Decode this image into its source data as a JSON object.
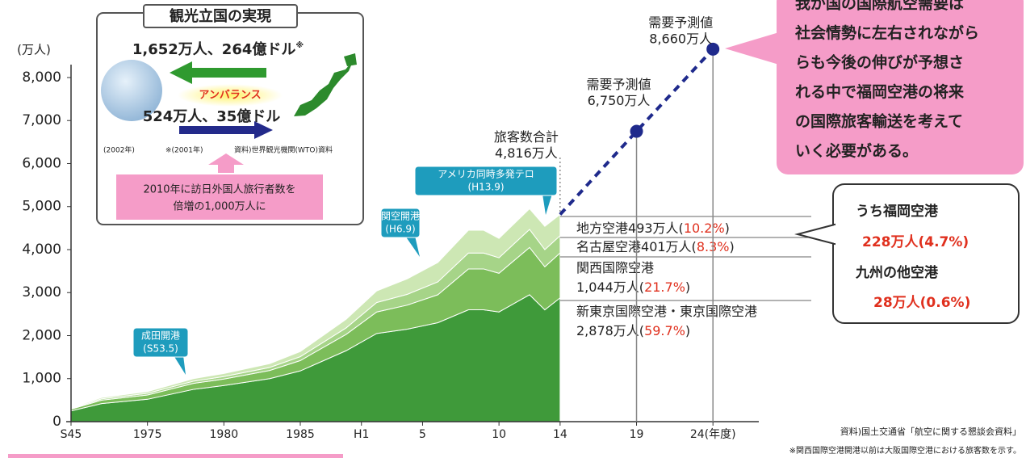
{
  "chart_data": {
    "type": "area",
    "stacked": true,
    "ylabel": "(万人)",
    "x": [
      1970,
      1972,
      1975,
      1978,
      1980,
      1983,
      1985,
      1988,
      1990,
      1992,
      1994,
      1996,
      1997,
      1998,
      2000,
      2001,
      2002
    ],
    "series": [
      {
        "name": "新東京国際空港・東京国際空港",
        "color": "#3f9a3a",
        "label": [
          "2,878万人(",
          "59.7%",
          ")"
        ],
        "values": [
          250,
          420,
          520,
          750,
          840,
          1000,
          1180,
          1650,
          2050,
          2150,
          2300,
          2600,
          2600,
          2550,
          2950,
          2600,
          2878
        ]
      },
      {
        "name": "関西国際空港",
        "color": "#7cbd5a",
        "label": [
          "1,044万人(",
          "21.7%",
          ")"
        ],
        "values": [
          40,
          80,
          100,
          140,
          150,
          190,
          240,
          380,
          500,
          560,
          650,
          950,
          950,
          900,
          1100,
          1000,
          1044
        ]
      },
      {
        "name": "名古屋空港",
        "color": "#a6d488",
        "label": [
          "401万人(",
          "8.3%",
          ")"
        ],
        "values": [
          15,
          30,
          40,
          50,
          60,
          70,
          90,
          150,
          220,
          250,
          300,
          370,
          370,
          360,
          420,
          400,
          401
        ]
      },
      {
        "name": "地方空港",
        "color": "#cde7b4",
        "label": [
          "493万人(",
          "10.2%",
          ")"
        ],
        "values": [
          15,
          30,
          40,
          60,
          70,
          90,
          120,
          200,
          270,
          360,
          450,
          530,
          530,
          450,
          480,
          540,
          493
        ]
      }
    ],
    "forecast": {
      "color": "#1f2a8c",
      "x": [
        2002,
        2007,
        2012
      ],
      "values": [
        4816,
        6750,
        8660
      ],
      "labels": [
        [
          "旅客数合計",
          "4,816万人"
        ],
        [
          "需要予測値",
          "6,750万人"
        ],
        [
          "需要予測値",
          "8,660万人"
        ]
      ]
    },
    "annotations": [
      [
        "成田開港",
        "(S53.5)"
      ],
      [
        "関空開港",
        "(H6.9)"
      ],
      [
        "アメリカ同時多発テロ",
        "(H13.9)"
      ]
    ],
    "xlim": [
      1970,
      2015
    ],
    "xticks": [
      {
        "value": 1970,
        "label": "S45"
      },
      1975,
      1980,
      1985,
      {
        "value": 1989,
        "label": "H1"
      },
      {
        "value": 1993,
        "label": "5"
      },
      {
        "value": 1998,
        "label": "10"
      },
      {
        "value": 2002,
        "label": "14"
      },
      {
        "value": 2007,
        "label": "19"
      },
      {
        "value": 2012,
        "label": "24(年度)"
      }
    ],
    "ylim": [
      0,
      8300
    ],
    "yticks": [
      0,
      {
        "value": 1000,
        "label": "1,000"
      },
      {
        "value": 2000,
        "label": "2,000"
      },
      {
        "value": 3000,
        "label": "3,000"
      },
      {
        "value": 4000,
        "label": "4,000"
      },
      {
        "value": 5000,
        "label": "5,000"
      },
      {
        "value": 6000,
        "label": "6,000"
      },
      {
        "value": 7000,
        "label": "7,000"
      },
      {
        "value": 8000,
        "label": "8,000"
      }
    ],
    "grid": false
  },
  "inset": {
    "title": "観光立国の実現",
    "top_line": [
      "1,652万人、264億ドル",
      "※"
    ],
    "balance": "アンバランス",
    "bottom_line": "524万人、35億ドル",
    "notes": [
      "(2002年)",
      "※(2001年)",
      "資料)世界観光機関(WTO)資料"
    ],
    "goal": [
      "2010年に訪日外国人旅行者数を",
      "倍増の1,000万人に"
    ]
  },
  "message": [
    "我が国の国際航空需要は",
    "社会情勢に左右されながら",
    "らも今後の伸びが予想さ",
    "れる中で福岡空港の将来",
    "の国際旅客輸送を考えて",
    "いく必要がある。"
  ],
  "fukuoka": [
    [
      "うち福岡空港",
      "228万人(4.7%)"
    ],
    [
      "九州の他空港",
      "28万人(0.6%)"
    ]
  ],
  "source": "資料)国土交通省「航空に関する懇談会資料」",
  "note": "※関西国際空港開港以前は大阪国際空港における旅客数を示す。"
}
